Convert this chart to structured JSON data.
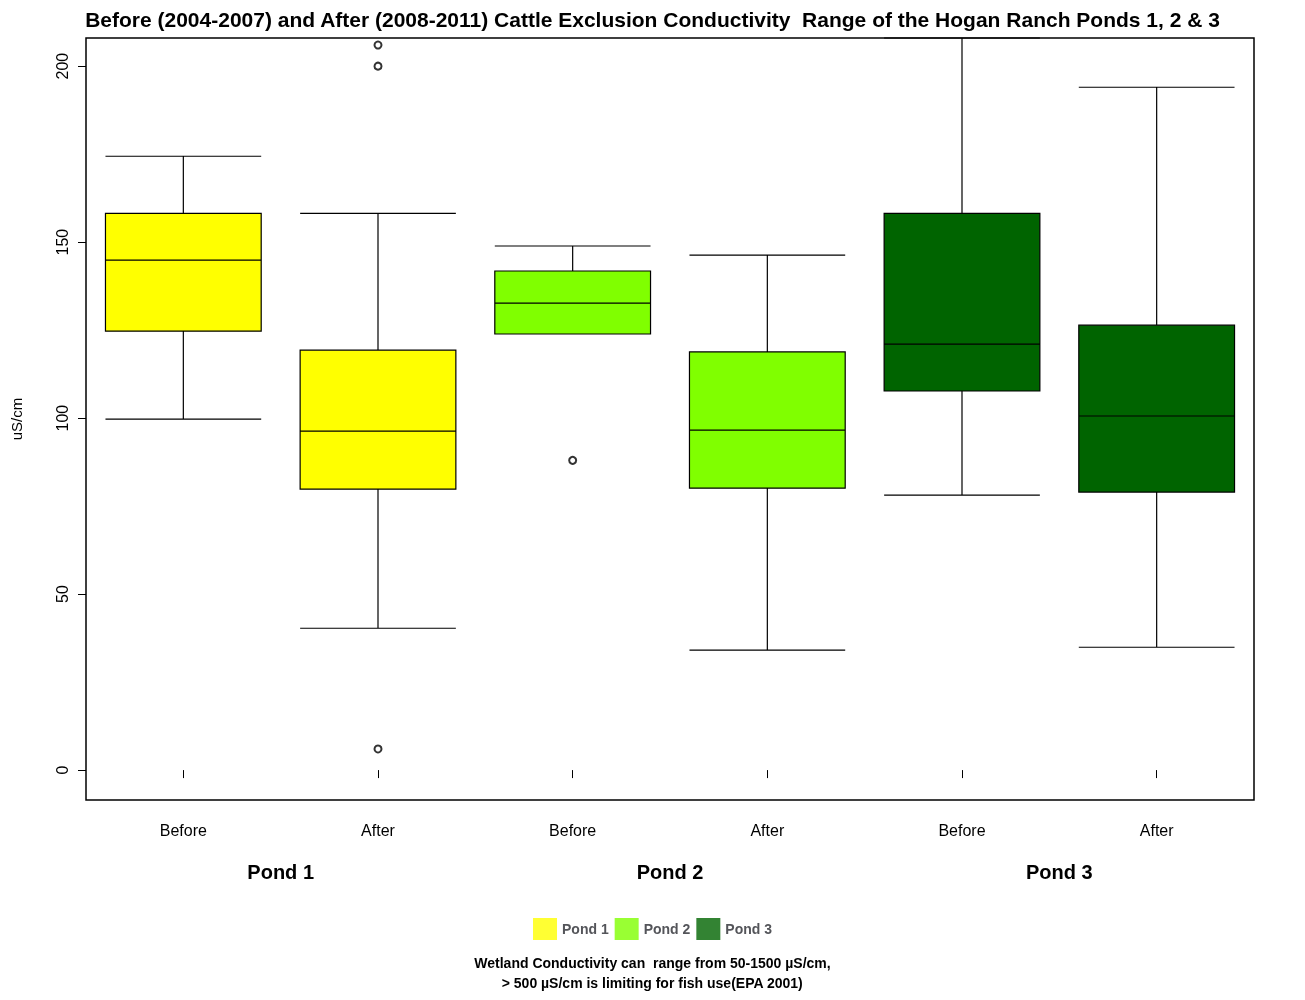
{
  "chart_data": {
    "type": "box",
    "title": "Before (2004-2007) and After (2008-2011) Cattle Exclusion Conductivity  Range of the Hogan Ranch Ponds 1, 2 & 3",
    "ylabel": "uS/cm",
    "categories": [
      "Before",
      "After",
      "Before",
      "After",
      "Before",
      "After"
    ],
    "series": [
      {
        "name": "Pond 1",
        "color": "#ffff00",
        "boxes": [
          {
            "low": 99.7,
            "q1": 124.7,
            "median": 144.9,
            "q3": 158.2,
            "high": 174.4
          },
          {
            "low": 40.3,
            "q1": 79.8,
            "median": 96.3,
            "q3": 119.3,
            "high": 158.2,
            "outliers": [
              206,
              200,
              6
            ]
          },
          null,
          null,
          null,
          null
        ]
      },
      {
        "name": "Pond 2",
        "color": "#80ff00",
        "boxes": [
          null,
          null,
          {
            "low": 123.9,
            "q1": 123.9,
            "median": 132.7,
            "q3": 141.8,
            "high": 148.9,
            "outliers": [
              88
            ]
          },
          {
            "low": 34.1,
            "q1": 80.1,
            "median": 96.6,
            "q3": 118.8,
            "high": 146.3
          },
          null,
          null
        ]
      },
      {
        "name": "Pond 3",
        "color": "#006400",
        "boxes": [
          null,
          null,
          null,
          null,
          {
            "low": 78.1,
            "q1": 107.7,
            "median": 121,
            "q3": 158.2,
            "high": 208
          },
          {
            "low": 34.9,
            "q1": 79,
            "median": 100.6,
            "q3": 126.4,
            "high": 194
          }
        ]
      }
    ],
    "ylim": [
      -8.5,
      208
    ],
    "yticks": [
      0,
      50,
      100,
      150,
      200
    ],
    "grid": false,
    "legend": "bottom",
    "marker": "circle",
    "annotations": [
      "Pond 1",
      "Pond 2",
      "Pond 3",
      "Wetland Conductivity can  range from 50-1500 µS/cm,",
      "> 500 µS/cm is limiting for fish use(EPA 2001)"
    ]
  }
}
